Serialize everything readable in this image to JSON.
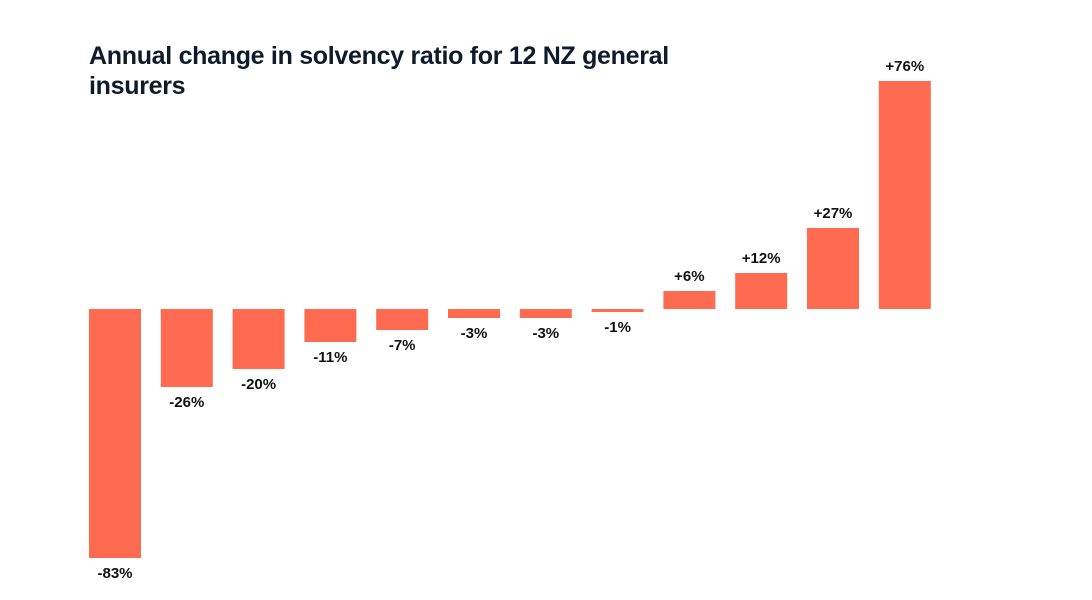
{
  "chart_data": {
    "type": "bar",
    "title": "Annual change in solvency ratio for 12 NZ general insurers",
    "values": [
      -83,
      -26,
      -20,
      -11,
      -7,
      -3,
      -3,
      -1,
      6,
      12,
      27,
      76
    ],
    "data_labels": [
      "-83%",
      "-26%",
      "-20%",
      "-11%",
      "-7%",
      "-3%",
      "-3%",
      "-1%",
      "+6%",
      "+12%",
      "+27%",
      "+76%"
    ],
    "unit": "%",
    "grid": false,
    "legend": "none",
    "bar_color": "#ff6b50"
  }
}
